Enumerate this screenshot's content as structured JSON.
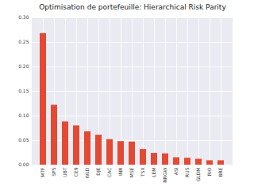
{
  "chart_data": {
    "type": "bar",
    "title": "Optimisation de portefeuille: Hierarchical Risk Parity",
    "categories": [
      "MTF",
      "SPS",
      "UBT",
      "CE9",
      "WLD",
      "DJE",
      "CAC",
      "INR",
      "MSE",
      "TSX",
      "LEM",
      "NRGW",
      "ASI",
      "RUS",
      "GLDM",
      "RIO",
      "BRE"
    ],
    "values": [
      0.268,
      0.122,
      0.088,
      0.08,
      0.068,
      0.061,
      0.052,
      0.048,
      0.047,
      0.032,
      0.024,
      0.023,
      0.015,
      0.014,
      0.012,
      0.009,
      0.009
    ],
    "color": "#e24a33",
    "ylim": [
      0,
      0.3
    ],
    "yticks": [
      {
        "value": 0,
        "label": "0.00"
      },
      {
        "value": 0.05,
        "label": "0.05"
      },
      {
        "value": 0.1,
        "label": "0.10"
      },
      {
        "value": 0.15,
        "label": "0.15"
      },
      {
        "value": 0.2,
        "label": "0.20"
      },
      {
        "value": 0.25,
        "label": "0.25"
      },
      {
        "value": 0.3,
        "label": "0.30"
      }
    ],
    "grid": true
  }
}
